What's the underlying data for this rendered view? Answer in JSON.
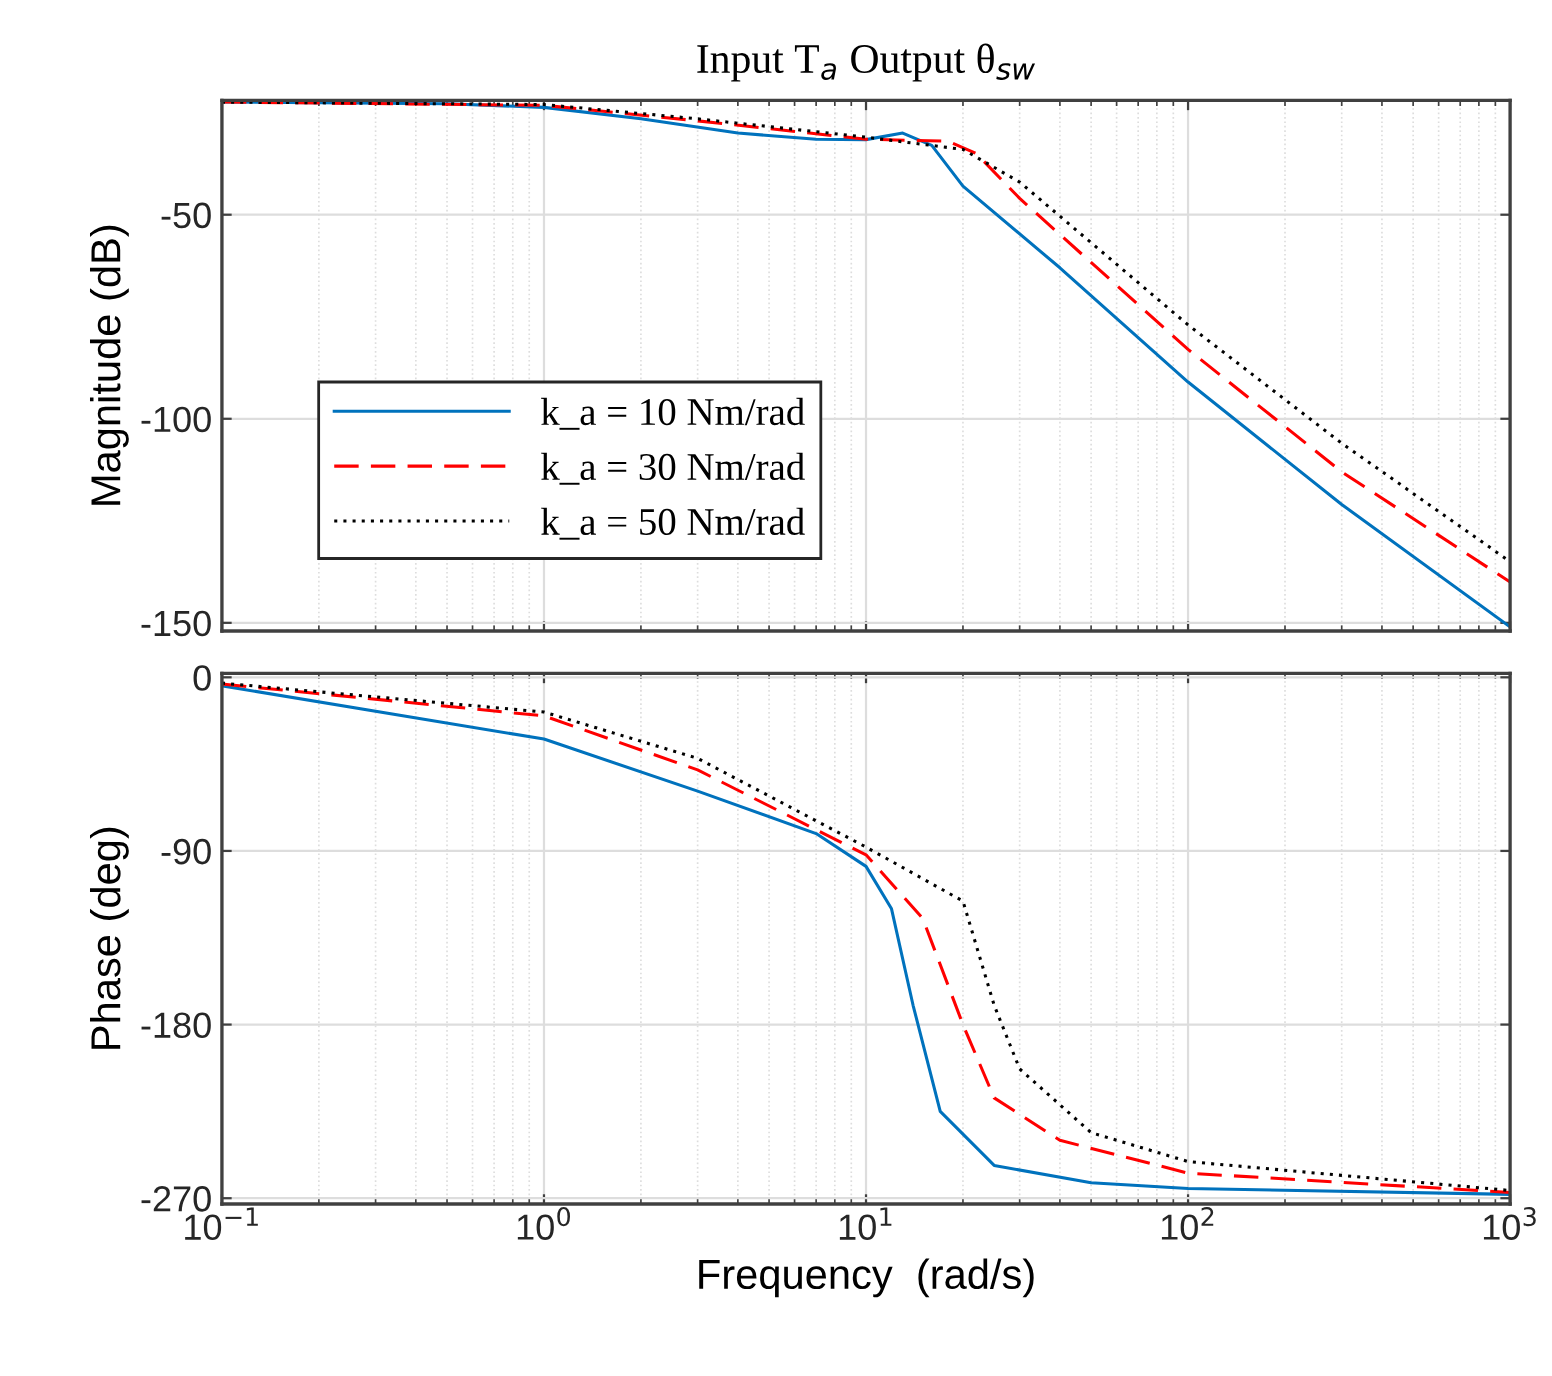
{
  "chart_data": [
    {
      "type": "line",
      "title": "Input T$_{a}$ Output θ$_{sw}$",
      "ylabel": "Magnitude (dB)",
      "log": "x",
      "grid": true,
      "legend": "bottom left",
      "tick_labels": "y",
      "xlim": [
        0.1,
        1000
      ],
      "xticks": [
        {
          "value": 0.1,
          "label": null
        },
        {
          "value": 1,
          "label": null
        },
        {
          "value": 10,
          "label": null
        },
        {
          "value": 100,
          "label": null
        },
        {
          "value": 1000,
          "label": null
        }
      ],
      "ylim": [
        -152,
        -22
      ],
      "yticks": [
        -50,
        -100,
        -150
      ],
      "series": [
        {
          "name": "k_a = 10 Nm/rad",
          "color": "#0072bd",
          "line_style": "solid",
          "x": [
            0.1,
            0.5,
            1,
            2,
            4,
            7,
            10,
            13,
            16,
            20,
            40,
            100,
            300,
            1000
          ],
          "values": [
            -22.4,
            -22.8,
            -23.7,
            -26.5,
            -30,
            -31.5,
            -31.6,
            -30,
            -33,
            -43,
            -63,
            -91,
            -121,
            -151
          ]
        },
        {
          "name": "k_a = 30 Nm/rad",
          "color": "#ff0000",
          "line_style": "dashed",
          "x": [
            0.1,
            1,
            3,
            10,
            18,
            22,
            30,
            100,
            300,
            1000
          ],
          "values": [
            -22.4,
            -23.2,
            -27,
            -31.5,
            -32,
            -35,
            -46,
            -83,
            -113,
            -140
          ]
        },
        {
          "name": "k_a = 50 Nm/rad",
          "color": "#000000",
          "line_style": "dotted",
          "x": [
            0.1,
            1,
            3,
            10,
            20,
            30,
            100,
            300,
            1000
          ],
          "values": [
            -22.4,
            -23,
            -26.5,
            -31,
            -34,
            -42,
            -77,
            -106,
            -135
          ]
        }
      ]
    },
    {
      "type": "line",
      "xlabel": "Frequency  (rad/s)",
      "ylabel": "Phase (deg)",
      "log": "x",
      "grid": true,
      "xlim": [
        0.1,
        1000
      ],
      "xticks": [
        {
          "value": 0.1,
          "label": "10$^{−1}$"
        },
        {
          "value": 1,
          "label": "10$^{0}$"
        },
        {
          "value": 10,
          "label": "10$^{1}$"
        },
        {
          "value": 100,
          "label": "10$^{2}$"
        },
        {
          "value": 1000,
          "label": "10$^{3}$"
        }
      ],
      "ylim": [
        -273,
        2
      ],
      "yticks": [
        0,
        -90,
        -180,
        -270
      ],
      "series": [
        {
          "color": "#0072bd",
          "line_style": "solid",
          "x": [
            0.1,
            1,
            3,
            7,
            10,
            12,
            14,
            17,
            25,
            50,
            100,
            1000
          ],
          "values": [
            -4.4,
            -32,
            -59,
            -81,
            -98,
            -120,
            -170,
            -225,
            -253,
            -262,
            -265,
            -268
          ]
        },
        {
          "color": "#ff0000",
          "line_style": "dashed",
          "x": [
            0.1,
            1,
            3,
            10,
            15,
            20,
            25,
            40,
            100,
            1000
          ],
          "values": [
            -3.5,
            -20,
            -48,
            -92,
            -125,
            -180,
            -218,
            -240,
            -257,
            -267
          ]
        },
        {
          "color": "#000000",
          "line_style": "dotted",
          "x": [
            0.1,
            1,
            3,
            10,
            20,
            25,
            30,
            50,
            100,
            1000
          ],
          "values": [
            -3,
            -18,
            -42,
            -88,
            -116,
            -170,
            -203,
            -236,
            -251,
            -266
          ]
        }
      ]
    }
  ]
}
